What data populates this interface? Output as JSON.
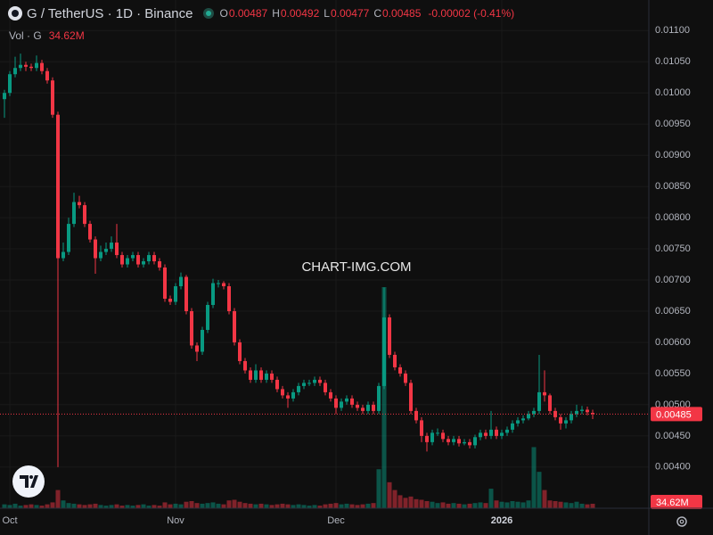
{
  "chart_data": {
    "type": "candlestick",
    "title": "G / TetherUS · 1D · Binance",
    "ohlc_labels": [
      "O",
      "H",
      "L",
      "C"
    ],
    "change_label": "-0.00002 (-0.41%)",
    "watermark": "CHART-IMG.COM",
    "categories": [
      null,
      "Oct",
      null,
      null,
      null,
      null,
      null,
      null,
      null,
      null,
      null,
      null,
      null,
      null,
      null,
      null,
      null,
      null,
      null,
      null,
      null,
      null,
      null,
      null,
      null,
      null,
      null,
      null,
      null,
      null,
      null,
      null,
      "Nov",
      null,
      null,
      null,
      null,
      null,
      null,
      null,
      null,
      null,
      null,
      null,
      null,
      null,
      null,
      null,
      null,
      null,
      null,
      null,
      null,
      null,
      null,
      null,
      null,
      null,
      null,
      null,
      null,
      null,
      "Dec",
      null,
      null,
      null,
      null,
      null,
      null,
      null,
      null,
      null,
      null,
      null,
      null,
      null,
      null,
      null,
      null,
      null,
      null,
      null,
      null,
      null,
      null,
      null,
      null,
      null,
      null,
      null,
      null,
      null,
      null,
      "2026",
      null,
      null,
      null,
      null,
      null,
      null,
      null,
      null,
      null,
      null,
      null,
      null,
      null,
      null,
      null,
      null,
      null
    ],
    "up_color": "#089981",
    "down_color": "#f23645",
    "series": [
      {
        "open": [
          0.0099,
          0.01,
          0.0103,
          0.0104,
          0.01045,
          0.01042,
          0.0104,
          0.01048,
          0.01035,
          0.0102,
          0.00965,
          0.00735,
          0.00745,
          0.0079,
          0.00825,
          0.0082,
          0.0079,
          0.00765,
          0.00735,
          0.00745,
          0.0075,
          0.0076,
          0.0074,
          0.00725,
          0.00735,
          0.0074,
          0.00725,
          0.0073,
          0.0074,
          0.0073,
          0.0072,
          0.0067,
          0.00665,
          0.0069,
          0.00705,
          0.0065,
          0.00595,
          0.00585,
          0.0062,
          0.0066,
          0.00695,
          0.00695,
          0.0069,
          0.0065,
          0.006,
          0.0057,
          0.00555,
          0.0054,
          0.00555,
          0.0054,
          0.0055,
          0.0054,
          0.00525,
          0.00515,
          0.0051,
          0.0052,
          0.0053,
          0.00535,
          0.00535,
          0.0054,
          0.00535,
          0.0052,
          0.0051,
          0.00495,
          0.00505,
          0.0051,
          0.005,
          0.00495,
          0.0049,
          0.005,
          0.0049,
          0.0053,
          0.0064,
          0.0058,
          0.0056,
          0.0055,
          0.00535,
          0.0049,
          0.00475,
          0.0045,
          0.0044,
          0.00455,
          0.00455,
          0.00445,
          0.0044,
          0.00445,
          0.00438,
          0.0044,
          0.00435,
          0.00448,
          0.00455,
          0.0045,
          0.0046,
          0.0045,
          0.00455,
          0.0046,
          0.0047,
          0.00475,
          0.00478,
          0.00485,
          0.0049,
          0.0052,
          0.00515,
          0.0049,
          0.0048,
          0.0047,
          0.00475,
          0.00485,
          0.0049,
          0.00492,
          0.00487
        ],
        "high": [
          0.01005,
          0.01035,
          0.01058,
          0.01063,
          0.0105,
          0.01047,
          0.0106,
          0.01053,
          0.0104,
          0.01025,
          0.0097,
          0.0076,
          0.008,
          0.0084,
          0.00835,
          0.00825,
          0.00795,
          0.0077,
          0.00755,
          0.0076,
          0.0077,
          0.0079,
          0.00745,
          0.0074,
          0.00745,
          0.00745,
          0.00735,
          0.00745,
          0.00745,
          0.00735,
          0.00725,
          0.00675,
          0.00695,
          0.00712,
          0.00708,
          0.00655,
          0.006,
          0.00625,
          0.00665,
          0.00702,
          0.007,
          0.00698,
          0.00695,
          0.00655,
          0.00605,
          0.00575,
          0.0056,
          0.00565,
          0.0056,
          0.00555,
          0.00555,
          0.00545,
          0.0053,
          0.0052,
          0.00525,
          0.00535,
          0.0054,
          0.0054,
          0.00545,
          0.00545,
          0.0054,
          0.00525,
          0.00515,
          0.0051,
          0.00515,
          0.00515,
          0.00505,
          0.005,
          0.00505,
          0.00505,
          0.00535,
          0.00688,
          0.00645,
          0.00585,
          0.00565,
          0.00555,
          0.0054,
          0.00495,
          0.0048,
          0.00455,
          0.0046,
          0.00462,
          0.0046,
          0.0045,
          0.0045,
          0.0045,
          0.00445,
          0.00445,
          0.00452,
          0.0046,
          0.0046,
          0.0049,
          0.00465,
          0.0046,
          0.00465,
          0.00475,
          0.0048,
          0.00483,
          0.0049,
          0.00495,
          0.0058,
          0.00555,
          0.00518,
          0.00495,
          0.00485,
          0.0048,
          0.0049,
          0.005,
          0.00498,
          0.00497,
          0.00492
        ],
        "low": [
          0.0096,
          0.00995,
          0.01025,
          0.01035,
          0.01035,
          0.01035,
          0.01035,
          0.0103,
          0.01015,
          0.0096,
          0.004,
          0.0073,
          0.0074,
          0.00785,
          0.00815,
          0.00785,
          0.0076,
          0.0071,
          0.0073,
          0.0074,
          0.00745,
          0.00735,
          0.0072,
          0.0072,
          0.0073,
          0.0072,
          0.0072,
          0.00725,
          0.00725,
          0.00715,
          0.00665,
          0.0066,
          0.0066,
          0.00685,
          0.00645,
          0.0059,
          0.0057,
          0.0058,
          0.00615,
          0.00655,
          0.00688,
          0.00685,
          0.00645,
          0.00595,
          0.00565,
          0.0055,
          0.00535,
          0.00535,
          0.00535,
          0.00535,
          0.00535,
          0.0052,
          0.0051,
          0.00495,
          0.00505,
          0.00515,
          0.00525,
          0.0053,
          0.0053,
          0.0053,
          0.00515,
          0.00505,
          0.00485,
          0.0049,
          0.005,
          0.00495,
          0.0049,
          0.00485,
          0.00485,
          0.00485,
          0.00485,
          0.00525,
          0.00575,
          0.00555,
          0.00545,
          0.0053,
          0.00485,
          0.0047,
          0.0044,
          0.00425,
          0.00435,
          0.0045,
          0.0044,
          0.00435,
          0.00435,
          0.00433,
          0.00435,
          0.0043,
          0.0043,
          0.00443,
          0.00445,
          0.00445,
          0.00445,
          0.00445,
          0.0045,
          0.00455,
          0.00465,
          0.0047,
          0.00475,
          0.0048,
          0.00485,
          0.00505,
          0.00485,
          0.00475,
          0.0046,
          0.00462,
          0.0047,
          0.0048,
          0.00485,
          0.00483,
          0.00477
        ],
        "close": [
          0.01,
          0.0103,
          0.0104,
          0.01045,
          0.01042,
          0.0104,
          0.01048,
          0.01035,
          0.0102,
          0.00965,
          0.00735,
          0.00745,
          0.0079,
          0.00825,
          0.0082,
          0.0079,
          0.00765,
          0.00735,
          0.00745,
          0.0075,
          0.0076,
          0.0074,
          0.00725,
          0.00735,
          0.0074,
          0.00725,
          0.0073,
          0.0074,
          0.0073,
          0.0072,
          0.0067,
          0.00665,
          0.0069,
          0.00705,
          0.0065,
          0.00595,
          0.00585,
          0.0062,
          0.0066,
          0.00695,
          0.00695,
          0.0069,
          0.0065,
          0.006,
          0.0057,
          0.00555,
          0.0054,
          0.00555,
          0.0054,
          0.0055,
          0.0054,
          0.00525,
          0.00515,
          0.0051,
          0.0052,
          0.0053,
          0.00535,
          0.00535,
          0.0054,
          0.00535,
          0.0052,
          0.0051,
          0.00495,
          0.00505,
          0.0051,
          0.005,
          0.00495,
          0.0049,
          0.005,
          0.0049,
          0.0053,
          0.0064,
          0.0058,
          0.0056,
          0.0055,
          0.00535,
          0.0049,
          0.00475,
          0.0045,
          0.0044,
          0.00455,
          0.00455,
          0.00445,
          0.0044,
          0.00445,
          0.00438,
          0.0044,
          0.00435,
          0.00448,
          0.00455,
          0.0045,
          0.0046,
          0.0045,
          0.00455,
          0.0046,
          0.0047,
          0.00475,
          0.00478,
          0.00485,
          0.0049,
          0.0052,
          0.00515,
          0.0049,
          0.0048,
          0.0047,
          0.00475,
          0.00485,
          0.0049,
          0.00492,
          0.00488,
          0.00485
        ]
      }
    ],
    "volume": {
      "name": "Vol · G",
      "values": [
        30,
        25,
        35,
        20,
        25,
        30,
        25,
        20,
        30,
        45,
        140,
        60,
        40,
        35,
        30,
        25,
        30,
        35,
        25,
        20,
        25,
        30,
        20,
        25,
        20,
        25,
        30,
        20,
        25,
        20,
        45,
        30,
        35,
        30,
        50,
        55,
        40,
        35,
        40,
        45,
        35,
        30,
        60,
        65,
        50,
        40,
        35,
        30,
        35,
        30,
        25,
        30,
        35,
        30,
        25,
        30,
        25,
        20,
        25,
        20,
        30,
        35,
        40,
        30,
        35,
        30,
        25,
        30,
        35,
        40,
        300,
        1700,
        200,
        140,
        100,
        80,
        90,
        70,
        65,
        55,
        50,
        40,
        45,
        35,
        40,
        35,
        30,
        35,
        40,
        45,
        40,
        150,
        60,
        50,
        45,
        55,
        50,
        45,
        60,
        470,
        280,
        140,
        60,
        55,
        50,
        45,
        40,
        50,
        35,
        30,
        34.62
      ],
      "value_labels": {
        "110": "34.62M"
      }
    },
    "ylim": [
      0.00334,
      0.01149
    ],
    "yticks": [
      {
        "value": 0.004,
        "label": "0.00400"
      },
      {
        "value": 0.0045,
        "label": "0.00450"
      },
      {
        "value": 0.005,
        "label": "0.00500"
      },
      {
        "value": 0.0055,
        "label": "0.00550"
      },
      {
        "value": 0.006,
        "label": "0.00600"
      },
      {
        "value": 0.0065,
        "label": "0.00650"
      },
      {
        "value": 0.007,
        "label": "0.00700"
      },
      {
        "value": 0.0075,
        "label": "0.00750"
      },
      {
        "value": 0.008,
        "label": "0.00800"
      },
      {
        "value": 0.0085,
        "label": "0.00850"
      },
      {
        "value": 0.009,
        "label": "0.00900"
      },
      {
        "value": 0.0095,
        "label": "0.00950"
      },
      {
        "value": 0.01,
        "label": "0.01000"
      },
      {
        "value": 0.0105,
        "label": "0.01050"
      },
      {
        "value": 0.011,
        "label": "0.01100"
      }
    ],
    "grid": true
  }
}
